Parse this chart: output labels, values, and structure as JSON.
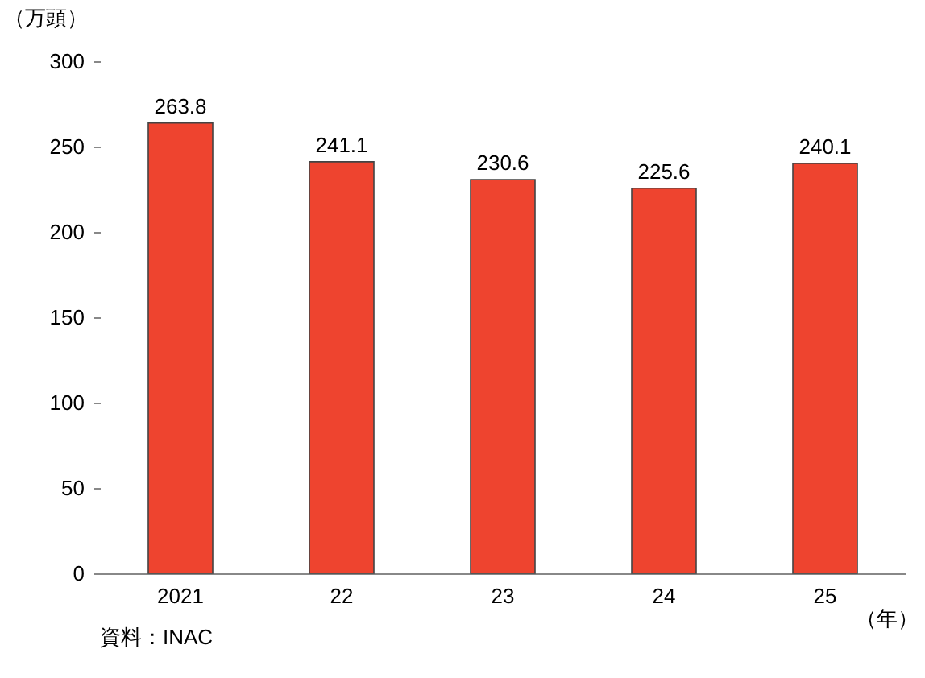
{
  "chart_data": {
    "type": "bar",
    "categories": [
      "2021",
      "22",
      "23",
      "24",
      "25"
    ],
    "values": [
      263.8,
      241.1,
      230.6,
      225.6,
      240.1
    ],
    "color": "#ee442f",
    "ylim": [
      0,
      300
    ],
    "yticks": [
      0,
      50,
      100,
      150,
      200,
      250,
      300
    ],
    "ylabel": "（万頭）",
    "xlabel": "（年）",
    "data_labels": true,
    "grid": false,
    "annotations": [
      "資料：INAC"
    ]
  }
}
